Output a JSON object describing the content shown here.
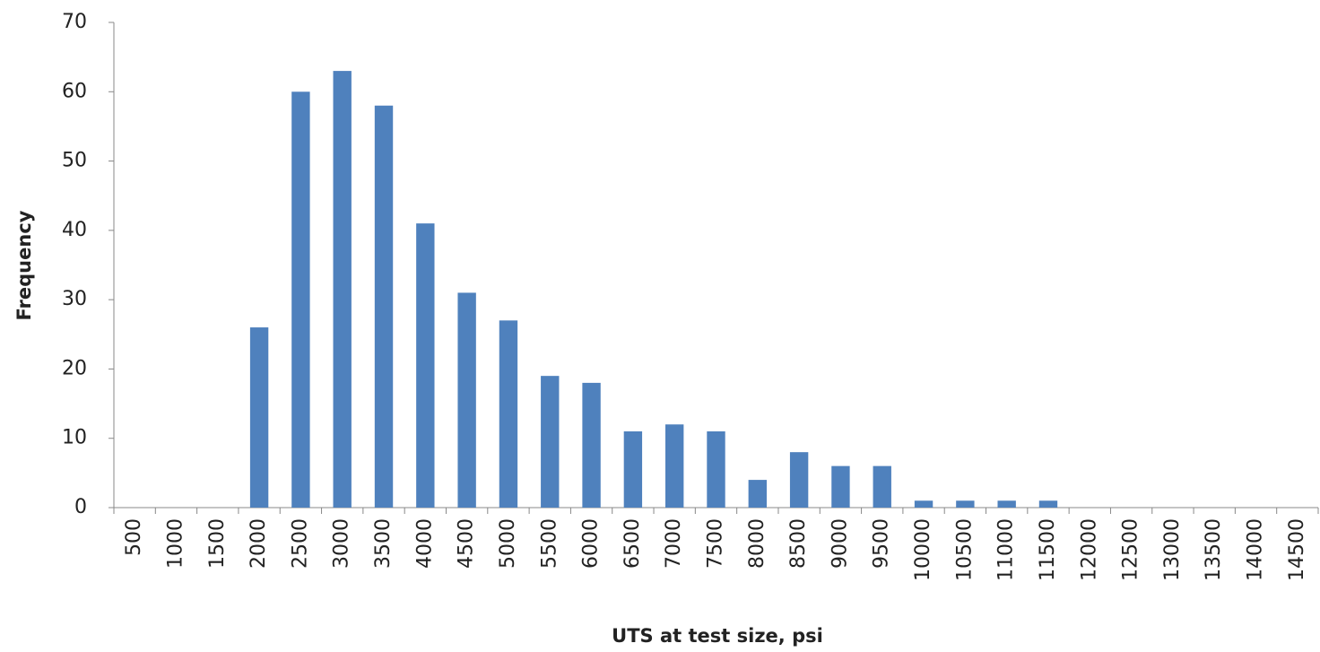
{
  "chart_data": {
    "type": "bar",
    "x_label": "UTS at test size, psi",
    "y_label": "Frequency",
    "categories": [
      "500",
      "1000",
      "1500",
      "2000",
      "2500",
      "3000",
      "3500",
      "4000",
      "4500",
      "5000",
      "5500",
      "6000",
      "6500",
      "7000",
      "7500",
      "8000",
      "8500",
      "9000",
      "9500",
      "10000",
      "10500",
      "11000",
      "11500",
      "12000",
      "12500",
      "13000",
      "13500",
      "14000",
      "14500"
    ],
    "values": [
      0,
      0,
      0,
      26,
      60,
      63,
      58,
      41,
      31,
      27,
      19,
      18,
      11,
      12,
      11,
      4,
      8,
      6,
      6,
      1,
      1,
      1,
      1,
      0,
      0,
      0,
      0,
      0,
      0
    ],
    "color": "#4f81bd",
    "ylim": [
      0,
      70
    ],
    "yticks": [
      0,
      10,
      20,
      30,
      40,
      50,
      60,
      70
    ],
    "grid": false
  }
}
